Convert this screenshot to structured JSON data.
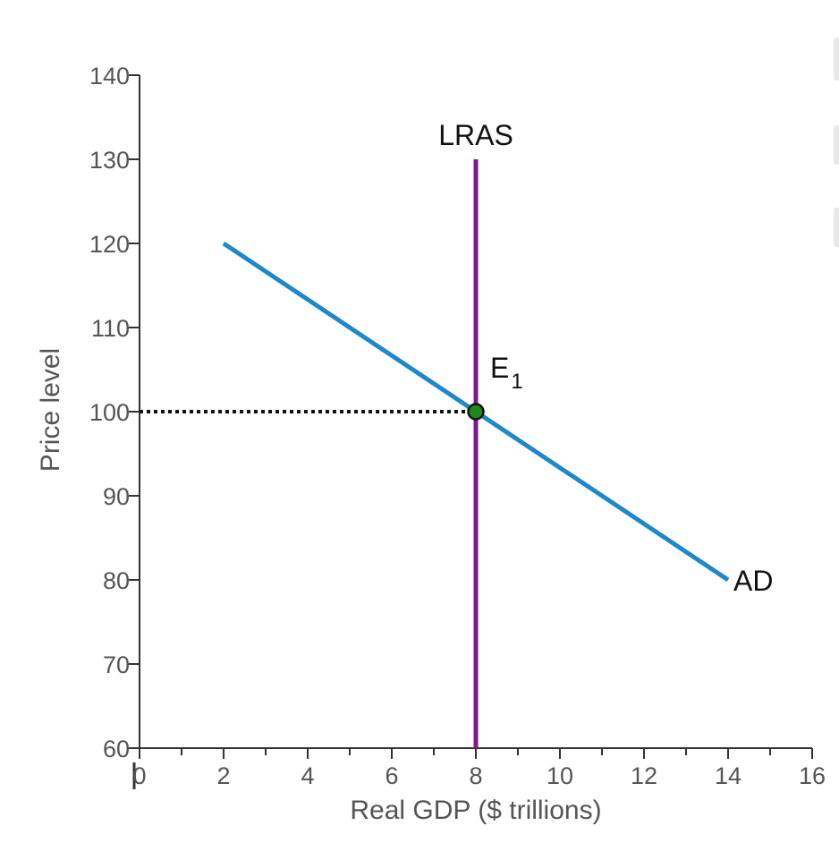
{
  "chart_data": {
    "type": "line",
    "title": "",
    "xlabel": "Real GDP ($ trillions)",
    "ylabel": "Price level",
    "xlim": [
      0,
      16
    ],
    "ylim": [
      60,
      140
    ],
    "x_ticks": [
      0,
      2,
      4,
      6,
      8,
      10,
      12,
      14,
      16
    ],
    "y_ticks": [
      60,
      70,
      80,
      90,
      100,
      110,
      120,
      130,
      140
    ],
    "grid": false,
    "series": [
      {
        "name": "AD",
        "color": "#1e88c8",
        "points": [
          [
            2,
            120
          ],
          [
            14,
            80
          ]
        ]
      },
      {
        "name": "LRAS",
        "color": "#7d1a8c",
        "points": [
          [
            8,
            60
          ],
          [
            8,
            130
          ]
        ]
      }
    ],
    "equilibrium": {
      "label": "E",
      "subscript": "1",
      "x": 8,
      "y": 100,
      "color": "#1a8a1a"
    },
    "guide_line": {
      "style": "dotted",
      "from": [
        0,
        100
      ],
      "to": [
        8,
        100
      ],
      "color": "#111111"
    }
  }
}
